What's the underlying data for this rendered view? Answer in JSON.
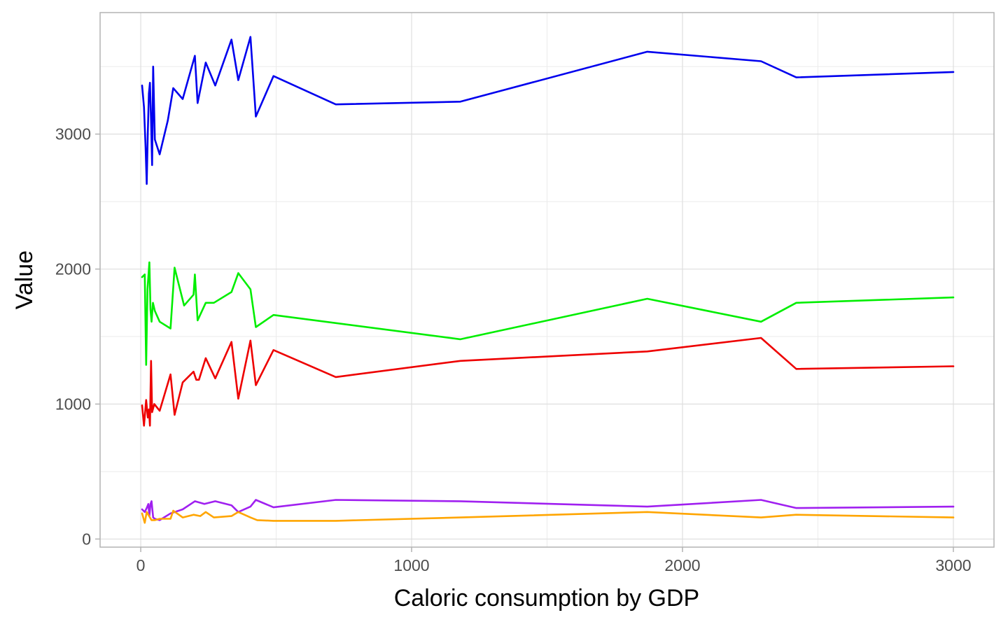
{
  "chart_data": {
    "type": "line",
    "title": "",
    "xlabel": "Caloric consumption by GDP",
    "ylabel": "Value",
    "xlim": [
      -150,
      3150
    ],
    "ylim": [
      -60,
      3900
    ],
    "x_ticks": [
      0,
      1000,
      2000,
      3000
    ],
    "y_ticks": [
      0,
      1000,
      2000,
      3000
    ],
    "grid": true,
    "legend": "none",
    "colors": [
      "#0000ee",
      "#00ee00",
      "#ee0000",
      "#a020f0",
      "#ffa500"
    ],
    "series": [
      {
        "color": "#0000ee",
        "points": [
          [
            5,
            3360
          ],
          [
            12,
            3200
          ],
          [
            18,
            2900
          ],
          [
            22,
            2630
          ],
          [
            26,
            3000
          ],
          [
            30,
            3300
          ],
          [
            34,
            3380
          ],
          [
            38,
            3100
          ],
          [
            42,
            2770
          ],
          [
            46,
            3500
          ],
          [
            52,
            2960
          ],
          [
            70,
            2850
          ],
          [
            100,
            3100
          ],
          [
            120,
            3340
          ],
          [
            155,
            3260
          ],
          [
            200,
            3580
          ],
          [
            210,
            3230
          ],
          [
            240,
            3530
          ],
          [
            275,
            3360
          ],
          [
            335,
            3700
          ],
          [
            360,
            3400
          ],
          [
            405,
            3720
          ],
          [
            425,
            3130
          ],
          [
            490,
            3430
          ],
          [
            720,
            3220
          ],
          [
            1180,
            3240
          ],
          [
            1870,
            3610
          ],
          [
            2290,
            3540
          ],
          [
            2420,
            3420
          ],
          [
            3000,
            3460
          ]
        ]
      },
      {
        "color": "#00ee00",
        "points": [
          [
            5,
            1940
          ],
          [
            15,
            1960
          ],
          [
            20,
            1290
          ],
          [
            25,
            1850
          ],
          [
            32,
            2050
          ],
          [
            36,
            1700
          ],
          [
            40,
            1610
          ],
          [
            45,
            1750
          ],
          [
            52,
            1690
          ],
          [
            70,
            1610
          ],
          [
            110,
            1560
          ],
          [
            125,
            2010
          ],
          [
            160,
            1730
          ],
          [
            195,
            1810
          ],
          [
            200,
            1960
          ],
          [
            210,
            1620
          ],
          [
            240,
            1750
          ],
          [
            270,
            1750
          ],
          [
            335,
            1830
          ],
          [
            360,
            1970
          ],
          [
            405,
            1850
          ],
          [
            425,
            1570
          ],
          [
            490,
            1660
          ],
          [
            1180,
            1480
          ],
          [
            1870,
            1780
          ],
          [
            2290,
            1610
          ],
          [
            2420,
            1750
          ],
          [
            3000,
            1790
          ]
        ]
      },
      {
        "color": "#ee0000",
        "points": [
          [
            5,
            990
          ],
          [
            12,
            840
          ],
          [
            20,
            1030
          ],
          [
            26,
            900
          ],
          [
            30,
            960
          ],
          [
            34,
            840
          ],
          [
            38,
            1320
          ],
          [
            42,
            940
          ],
          [
            50,
            1000
          ],
          [
            70,
            950
          ],
          [
            110,
            1220
          ],
          [
            125,
            920
          ],
          [
            155,
            1160
          ],
          [
            195,
            1240
          ],
          [
            205,
            1180
          ],
          [
            215,
            1180
          ],
          [
            240,
            1340
          ],
          [
            275,
            1190
          ],
          [
            335,
            1460
          ],
          [
            360,
            1040
          ],
          [
            405,
            1470
          ],
          [
            425,
            1140
          ],
          [
            490,
            1400
          ],
          [
            720,
            1200
          ],
          [
            1180,
            1320
          ],
          [
            1870,
            1390
          ],
          [
            2290,
            1490
          ],
          [
            2420,
            1260
          ],
          [
            3000,
            1280
          ]
        ]
      },
      {
        "color": "#a020f0",
        "points": [
          [
            5,
            220
          ],
          [
            15,
            200
          ],
          [
            22,
            230
          ],
          [
            28,
            260
          ],
          [
            32,
            170
          ],
          [
            36,
            260
          ],
          [
            40,
            280
          ],
          [
            46,
            160
          ],
          [
            52,
            150
          ],
          [
            70,
            140
          ],
          [
            110,
            190
          ],
          [
            155,
            220
          ],
          [
            200,
            280
          ],
          [
            235,
            260
          ],
          [
            275,
            280
          ],
          [
            335,
            250
          ],
          [
            360,
            200
          ],
          [
            405,
            240
          ],
          [
            425,
            290
          ],
          [
            490,
            235
          ],
          [
            720,
            290
          ],
          [
            1180,
            280
          ],
          [
            1870,
            240
          ],
          [
            2290,
            290
          ],
          [
            2420,
            230
          ],
          [
            3000,
            240
          ]
        ]
      },
      {
        "color": "#ffa500",
        "points": [
          [
            5,
            190
          ],
          [
            15,
            120
          ],
          [
            22,
            200
          ],
          [
            28,
            180
          ],
          [
            34,
            160
          ],
          [
            40,
            140
          ],
          [
            52,
            140
          ],
          [
            70,
            150
          ],
          [
            110,
            150
          ],
          [
            120,
            210
          ],
          [
            155,
            160
          ],
          [
            195,
            180
          ],
          [
            220,
            170
          ],
          [
            240,
            200
          ],
          [
            270,
            160
          ],
          [
            335,
            170
          ],
          [
            360,
            200
          ],
          [
            405,
            160
          ],
          [
            430,
            140
          ],
          [
            490,
            135
          ],
          [
            720,
            135
          ],
          [
            1180,
            160
          ],
          [
            1870,
            200
          ],
          [
            2290,
            160
          ],
          [
            2420,
            180
          ],
          [
            3000,
            160
          ]
        ]
      }
    ]
  }
}
